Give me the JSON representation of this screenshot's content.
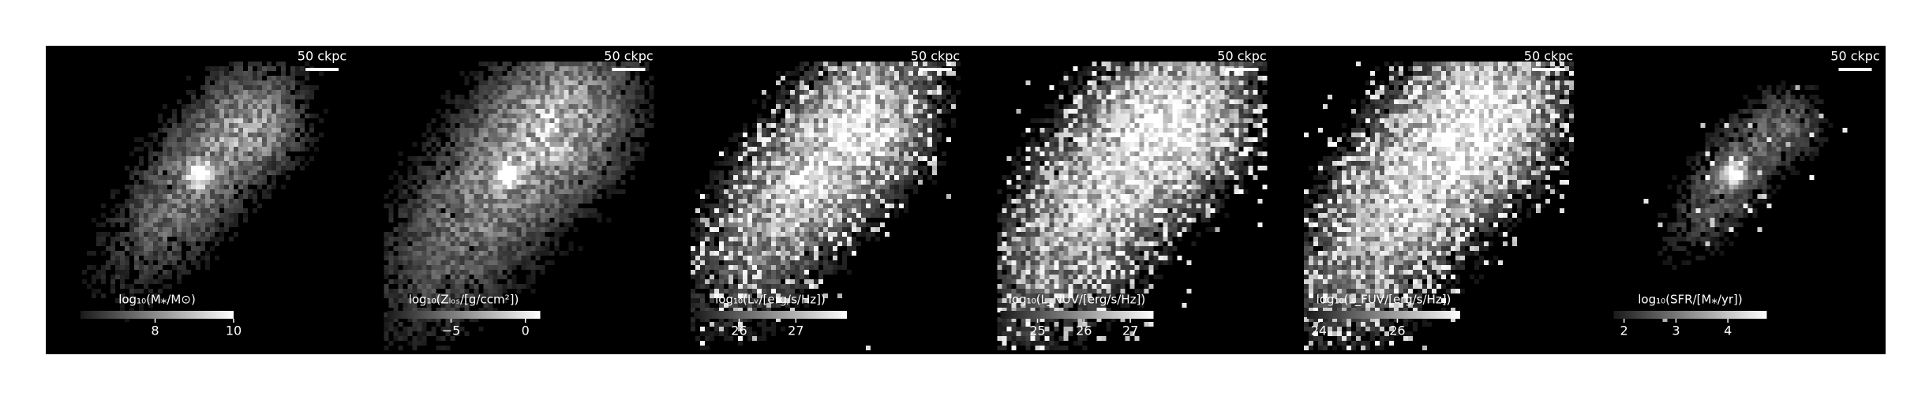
{
  "chart_data": [
    {
      "type": "image",
      "scalebar": "50 ckpc",
      "colorbar_label": "log₁₀(M⁎/M⊙)",
      "clim": [
        6.1,
        10.0
      ],
      "cticks": [
        8,
        10
      ]
    },
    {
      "type": "image",
      "scalebar": "50 ckpc",
      "colorbar_label": "log₁₀(Zₗₒₛ/[g/ccm²])",
      "clim": [
        -9.3,
        1.0
      ],
      "cticks": [
        {
          "value": -5,
          "label": "−5"
        },
        0
      ]
    },
    {
      "type": "image",
      "scalebar": "50 ckpc",
      "colorbar_label": "log₁₀(Lᵥ/[erg/s/Hz])",
      "clim": [
        25.2,
        27.9
      ],
      "cticks": [
        26,
        27
      ]
    },
    {
      "type": "image",
      "scalebar": "50 ckpc",
      "colorbar_label": "log₁₀(L_NUV/[erg/s/Hz])",
      "clim": [
        24.2,
        27.5
      ],
      "cticks": [
        25,
        26,
        27
      ]
    },
    {
      "type": "image",
      "scalebar": "50 ckpc",
      "colorbar_label": "log₁₀(L_FUV/[erg/s/Hz])",
      "clim": [
        23.7,
        27.6
      ],
      "cticks": [
        24,
        26
      ]
    },
    {
      "type": "image",
      "scalebar": "50 ckpc",
      "colorbar_label": "log₁₀(SFR/[M⁎/yr])",
      "clim": [
        1.8,
        4.75
      ],
      "cticks": [
        2,
        3,
        4
      ]
    }
  ]
}
